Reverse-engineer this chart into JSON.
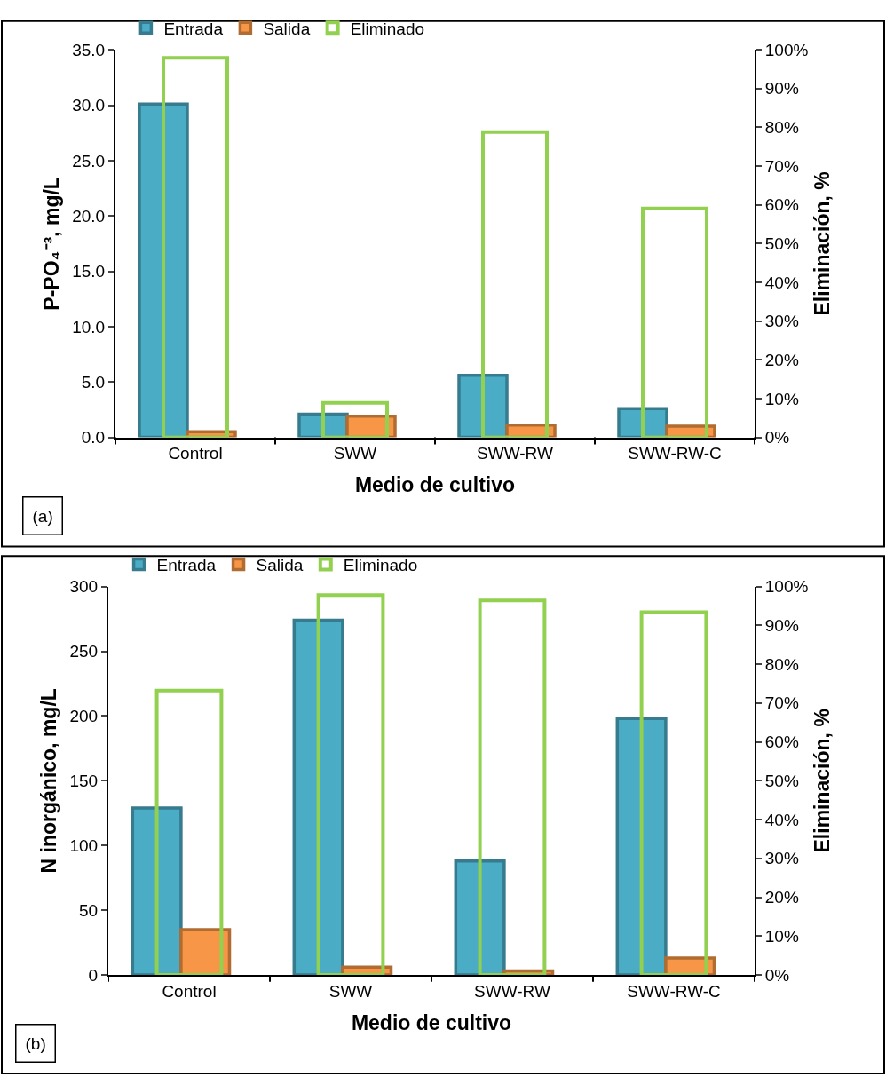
{
  "chart_data": [
    {
      "type": "bar",
      "categories": [
        "Control",
        "SWW",
        "SWW-RW",
        "SWW-RW-C"
      ],
      "xlabel": "Medio de cultivo",
      "ylabel": "P-PO₄⁻³, mg/L",
      "y2label": "Eliminación, %",
      "series": [
        {
          "name": "Entrada",
          "color": "#4bacc6",
          "values": [
            30.1,
            2.1,
            5.6,
            2.6
          ]
        },
        {
          "name": "Salida",
          "color": "#f79646",
          "values": [
            0.5,
            1.9,
            1.1,
            1.0
          ]
        },
        {
          "name": "Eliminado",
          "color": "#92d050",
          "axis": "y2",
          "values": [
            97.9,
            8.9,
            78.8,
            59.1
          ]
        }
      ],
      "ylim": [
        0,
        35
      ],
      "yticks": [
        {
          "value": 0,
          "label": "0.0"
        },
        {
          "value": 5,
          "label": "5.0"
        },
        {
          "value": 10,
          "label": "10.0"
        },
        {
          "value": 15,
          "label": "15.0"
        },
        {
          "value": 20,
          "label": "20.0"
        },
        {
          "value": 25,
          "label": "25.0"
        },
        {
          "value": 30,
          "label": "30.0"
        },
        {
          "value": 35,
          "label": "35.0"
        }
      ],
      "y2lim": [
        0,
        100
      ],
      "y2ticks": [
        {
          "value": 0,
          "label": "0%"
        },
        {
          "value": 10,
          "label": "10%"
        },
        {
          "value": 20,
          "label": "20%"
        },
        {
          "value": 30,
          "label": "30%"
        },
        {
          "value": 40,
          "label": "40%"
        },
        {
          "value": 50,
          "label": "50%"
        },
        {
          "value": 60,
          "label": "60%"
        },
        {
          "value": 70,
          "label": "70%"
        },
        {
          "value": 80,
          "label": "80%"
        },
        {
          "value": 90,
          "label": "90%"
        },
        {
          "value": 100,
          "label": "100%"
        }
      ],
      "annotations": [
        "(a)"
      ],
      "legend": "top left"
    },
    {
      "type": "bar",
      "categories": [
        "Control",
        "SWW",
        "SWW-RW",
        "SWW-RW-C"
      ],
      "xlabel": "Medio de cultivo",
      "ylabel": "N inorgánico, mg/L",
      "y2label": "Eliminación, %",
      "series": [
        {
          "name": "Entrada",
          "color": "#4bacc6",
          "values": [
            129,
            274,
            88,
            198
          ]
        },
        {
          "name": "Salida",
          "color": "#f79646",
          "values": [
            35,
            6,
            3,
            13
          ]
        },
        {
          "name": "Eliminado",
          "color": "#92d050",
          "axis": "y2",
          "values": [
            73.2,
            97.8,
            96.4,
            93.4
          ]
        }
      ],
      "ylim": [
        0,
        300
      ],
      "yticks": [
        0,
        50,
        100,
        150,
        200,
        250,
        300
      ],
      "y2lim": [
        0,
        100
      ],
      "y2ticks": [
        {
          "value": 0,
          "label": "0%"
        },
        {
          "value": 10,
          "label": "10%"
        },
        {
          "value": 20,
          "label": "20%"
        },
        {
          "value": 30,
          "label": "30%"
        },
        {
          "value": 40,
          "label": "40%"
        },
        {
          "value": 50,
          "label": "50%"
        },
        {
          "value": 60,
          "label": "60%"
        },
        {
          "value": 70,
          "label": "70%"
        },
        {
          "value": 80,
          "label": "80%"
        },
        {
          "value": 90,
          "label": "90%"
        },
        {
          "value": 100,
          "label": "100%"
        }
      ],
      "annotations": [
        "(b)"
      ],
      "legend": "top left"
    }
  ]
}
